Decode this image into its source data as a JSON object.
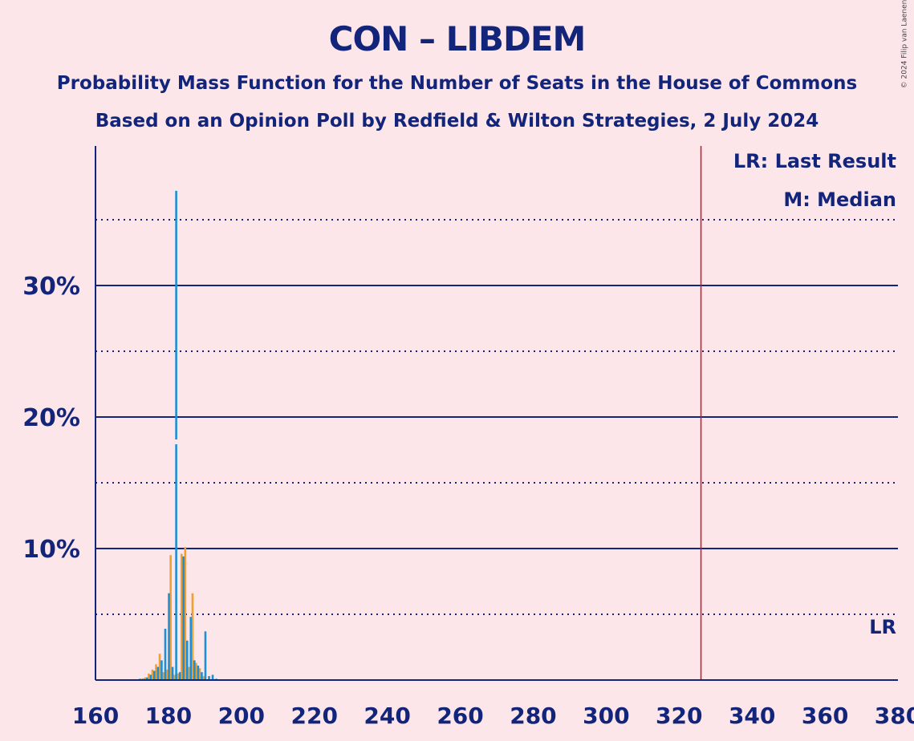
{
  "title": "CON – LIBDEM",
  "subtitle1": "Probability Mass Function for the Number of Seats in the House of Commons",
  "subtitle2": "Based on an Opinion Poll by Redfield & Wilton Strategies, 2 July 2024",
  "copyright": "© 2024 Filip van Laenen",
  "colors": {
    "text": "#12257a",
    "con": "#1c8fd6",
    "libdem": "#f0a030",
    "lastResult": "#d0102a",
    "background": "#fde6ea"
  },
  "chart_data": {
    "type": "bar",
    "xlabel": "",
    "ylabel": "",
    "xlim": [
      160,
      380
    ],
    "ylim": [
      0,
      40
    ],
    "x_ticks": [
      160,
      180,
      200,
      220,
      240,
      260,
      280,
      300,
      320,
      340,
      360,
      380
    ],
    "y_ticks_labeled": [
      10,
      20,
      30
    ],
    "y_ticks_labels": [
      "10%",
      "20%",
      "30%"
    ],
    "y_gridlines_dotted": [
      5,
      15,
      25,
      35
    ],
    "last_result": 326,
    "median": 182,
    "legend": [
      "LR: Last Result",
      "M: Median"
    ],
    "lr_marker_label": "LR",
    "median_marker_label": "M",
    "series": [
      {
        "name": "CON",
        "x": [
          172,
          173,
          174,
          175,
          176,
          177,
          178,
          179,
          180,
          181,
          182,
          183,
          184,
          185,
          186,
          187,
          188,
          189,
          190,
          191,
          192,
          193
        ],
        "values": [
          0.1,
          0.1,
          0.2,
          0.4,
          0.7,
          1.0,
          1.5,
          3.9,
          6.6,
          1.0,
          37.2,
          0.6,
          9.4,
          3.0,
          4.8,
          1.5,
          1.1,
          0.6,
          3.7,
          0.3,
          0.4,
          0.1
        ]
      },
      {
        "name": "LIBDEM",
        "x": [
          173,
          174,
          175,
          176,
          177,
          178,
          179,
          180,
          181,
          182,
          183,
          184,
          185,
          186,
          187,
          188,
          189,
          190
        ],
        "values": [
          0.1,
          0.2,
          0.5,
          0.8,
          1.2,
          2.0,
          0.6,
          0.8,
          9.5,
          0.4,
          0.5,
          9.6,
          10.1,
          1.0,
          6.6,
          1.3,
          0.9,
          0.3
        ]
      }
    ]
  }
}
